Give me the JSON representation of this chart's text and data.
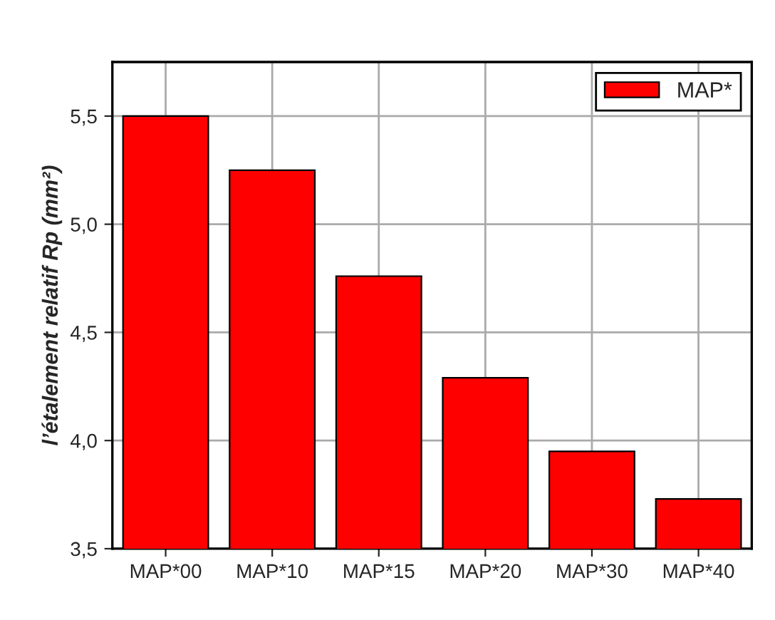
{
  "chart_data": {
    "type": "bar",
    "ylabel": "l’étalement relatif Rp (mm²)",
    "categories": [
      "MAP*00",
      "MAP*10",
      "MAP*15",
      "MAP*20",
      "MAP*30",
      "MAP*40"
    ],
    "series": [
      {
        "name": "MAP*",
        "color": "#ff0000",
        "values": [
          5.5,
          5.25,
          4.76,
          4.29,
          3.95,
          3.73
        ]
      }
    ],
    "ylim": [
      3.5,
      5.75
    ],
    "yticks": [
      {
        "value": 3.5,
        "label": "3,5"
      },
      {
        "value": 4.0,
        "label": "4,0"
      },
      {
        "value": 4.5,
        "label": "4,5"
      },
      {
        "value": 5.0,
        "label": "5,0"
      },
      {
        "value": 5.5,
        "label": "5,5"
      }
    ],
    "grid": true,
    "legend": "top right"
  }
}
